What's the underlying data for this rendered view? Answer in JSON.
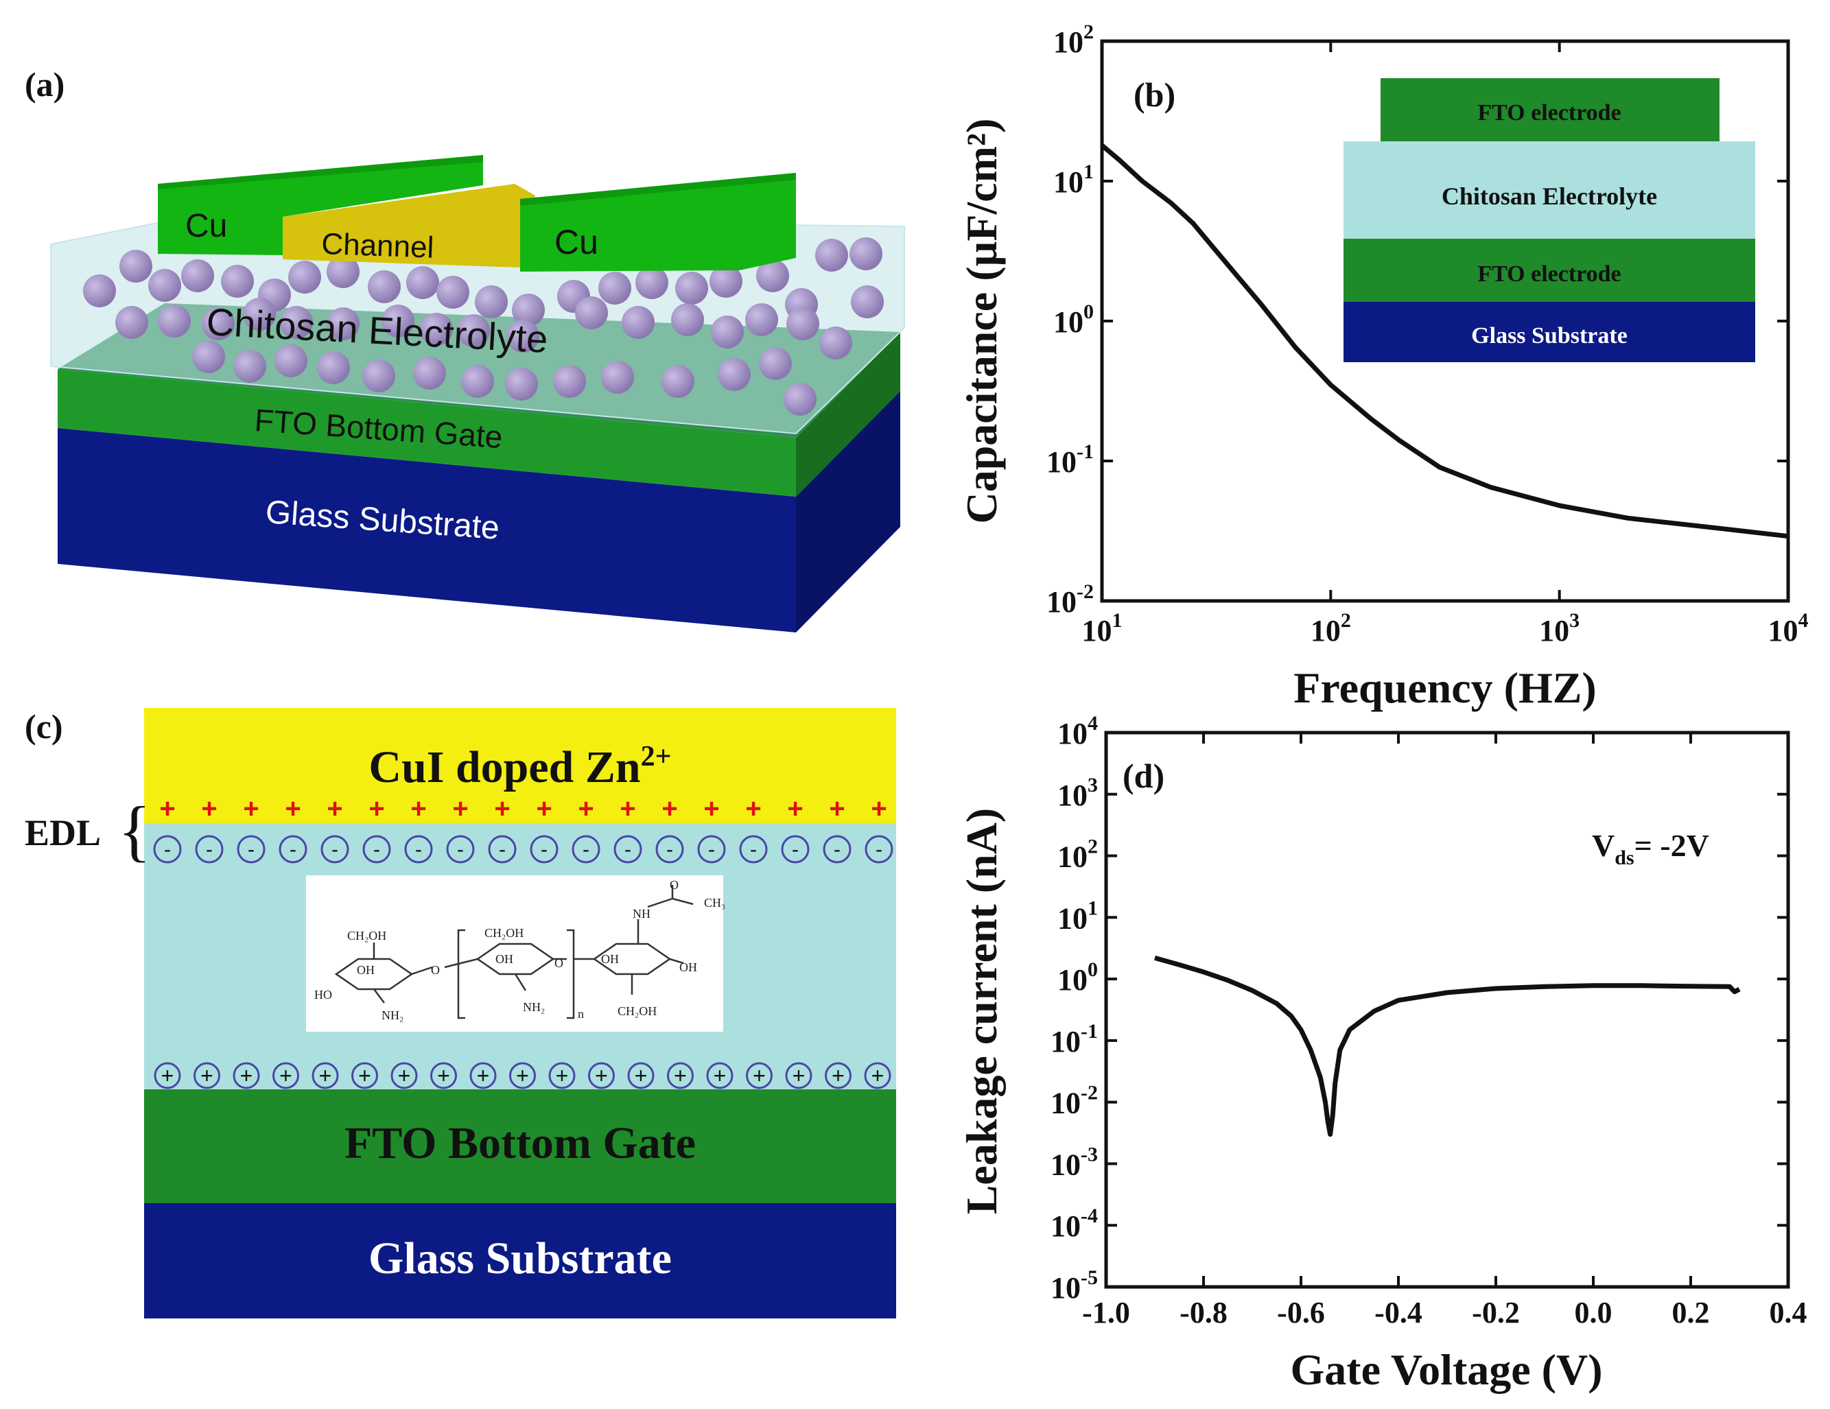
{
  "panel_labels": {
    "a": "(a)",
    "b": "(b)",
    "c": "(c)",
    "d": "(d)"
  },
  "panel_a": {
    "cu_left": "Cu",
    "cu_right": "Cu",
    "channel": "Channel",
    "electrolyte": "Chitosan Electrolyte",
    "gate": "FTO Bottom Gate",
    "substrate": "Glass Substrate"
  },
  "panel_b_inset": {
    "top": "FTO electrode",
    "middle": "Chitosan Electrolyte",
    "bottom_electrode": "FTO electrode",
    "substrate": "Glass Substrate"
  },
  "panel_c": {
    "top_layer_main": "CuI doped Zn",
    "top_layer_sup": "2+",
    "edl_label": "EDL",
    "gate": "FTO Bottom Gate",
    "substrate": "Glass Substrate",
    "molecule_labels": [
      "CH₂OH",
      "CH₂OH",
      "OH",
      "OH",
      "HO",
      "NH₂",
      "NH₂",
      "O",
      "O",
      "O",
      "NH",
      "CH₃",
      "OH",
      "OH",
      "CH₂OH",
      "n"
    ]
  },
  "colors": {
    "green": "#1f8a2a",
    "bright_green": "#18b418",
    "navy": "#0c1a86",
    "electrolyte": "#ace0df",
    "yellow": "#f4ef10",
    "ball": "#8a78b0"
  },
  "chart_data": [
    {
      "type": "line",
      "panel": "b",
      "xscale": "log",
      "yscale": "log",
      "xlabel": "Frequency (HZ)",
      "ylabel": "Capacitance (µF/cm²)",
      "xlim": [
        10,
        10000
      ],
      "ylim": [
        0.01,
        100
      ],
      "xticks": [
        10,
        100,
        1000,
        10000
      ],
      "yticks": [
        0.01,
        0.1,
        1,
        10,
        100
      ],
      "xtick_labels": [
        {
          "b": "10",
          "e": "1"
        },
        {
          "b": "10",
          "e": "2"
        },
        {
          "b": "10",
          "e": "3"
        },
        {
          "b": "10",
          "e": "4"
        }
      ],
      "ytick_labels": [
        {
          "b": "10",
          "e": "-2"
        },
        {
          "b": "10",
          "e": "-1"
        },
        {
          "b": "10",
          "e": "0"
        },
        {
          "b": "10",
          "e": "1"
        },
        {
          "b": "10",
          "e": "2"
        }
      ],
      "x": [
        10,
        12,
        15,
        20,
        25,
        30,
        40,
        50,
        70,
        100,
        150,
        200,
        300,
        500,
        1000,
        2000,
        5000,
        10000
      ],
      "y": [
        18,
        14,
        10,
        7,
        5,
        3.5,
        2,
        1.3,
        0.65,
        0.35,
        0.2,
        0.14,
        0.09,
        0.065,
        0.048,
        0.039,
        0.033,
        0.029
      ]
    },
    {
      "type": "line",
      "panel": "d",
      "xscale": "linear",
      "yscale": "log",
      "xlabel": "Gate Voltage (V)",
      "ylabel": "Leakage current (nA)",
      "annotation_main": "V",
      "annotation_sub": "ds",
      "annotation_value": "= -2V",
      "xlim": [
        -1.0,
        0.4
      ],
      "ylim": [
        1e-05,
        10000
      ],
      "xticks": [
        -1.0,
        -0.8,
        -0.6,
        -0.4,
        -0.2,
        0.0,
        0.2,
        0.4
      ],
      "xtick_labels": [
        "-1.0",
        "-0.8",
        "-0.6",
        "-0.4",
        "-0.2",
        "0.0",
        "0.2",
        "0.4"
      ],
      "yticks": [
        1e-05,
        0.0001,
        0.001,
        0.01,
        0.1,
        1,
        10,
        100,
        1000,
        10000
      ],
      "ytick_labels": [
        {
          "b": "10",
          "e": "-5"
        },
        {
          "b": "10",
          "e": "-4"
        },
        {
          "b": "10",
          "e": "-3"
        },
        {
          "b": "10",
          "e": "-2"
        },
        {
          "b": "10",
          "e": "-1"
        },
        {
          "b": "10",
          "e": "0"
        },
        {
          "b": "10",
          "e": "1"
        },
        {
          "b": "10",
          "e": "2"
        },
        {
          "b": "10",
          "e": "3"
        },
        {
          "b": "10",
          "e": "4"
        }
      ],
      "x": [
        -0.9,
        -0.85,
        -0.8,
        -0.75,
        -0.7,
        -0.65,
        -0.62,
        -0.6,
        -0.58,
        -0.56,
        -0.55,
        -0.545,
        -0.54,
        -0.535,
        -0.53,
        -0.52,
        -0.5,
        -0.45,
        -0.4,
        -0.3,
        -0.2,
        -0.1,
        0.0,
        0.1,
        0.2,
        0.28,
        0.29,
        0.3
      ],
      "y": [
        2.2,
        1.7,
        1.3,
        0.95,
        0.65,
        0.4,
        0.25,
        0.15,
        0.07,
        0.025,
        0.01,
        0.005,
        0.003,
        0.006,
        0.02,
        0.07,
        0.15,
        0.3,
        0.45,
        0.6,
        0.7,
        0.75,
        0.78,
        0.78,
        0.76,
        0.75,
        0.62,
        0.68
      ]
    }
  ]
}
